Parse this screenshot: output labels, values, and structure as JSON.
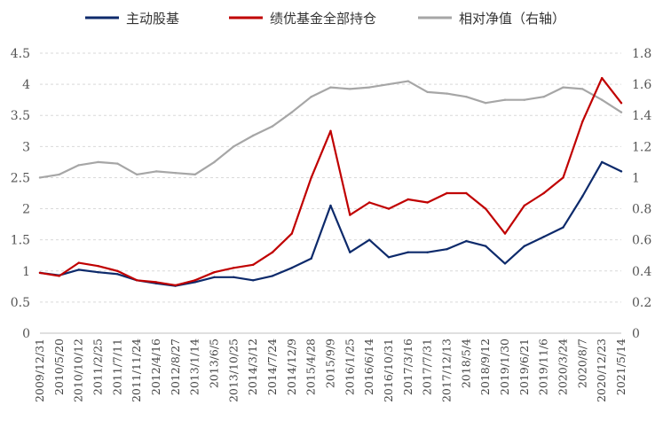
{
  "chart_data": {
    "type": "line",
    "title": "",
    "legend_position": "top",
    "x": [
      "2009/12/31",
      "2010/5/20",
      "2010/10/12",
      "2011/2/25",
      "2011/7/11",
      "2011/11/24",
      "2012/4/16",
      "2012/8/27",
      "2013/1/14",
      "2013/6/5",
      "2013/10/25",
      "2014/3/12",
      "2014/7/24",
      "2014/12/9",
      "2015/4/28",
      "2015/9/9",
      "2016/1/25",
      "2016/6/14",
      "2016/10/31",
      "2017/3/16",
      "2017/7/31",
      "2017/12/13",
      "2018/5/4",
      "2018/9/12",
      "2019/1/30",
      "2019/6/21",
      "2019/11/6",
      "2020/3/24",
      "2020/8/7",
      "2020/12/23",
      "2021/5/14"
    ],
    "y_left": {
      "ylim": [
        0,
        4.5
      ],
      "ticks": [
        "0",
        "0.5",
        "1",
        "1.5",
        "2",
        "2.5",
        "3",
        "3.5",
        "4",
        "4.5"
      ]
    },
    "y_right": {
      "ylim": [
        0,
        1.8
      ],
      "ticks": [
        "0",
        "0.2",
        "0.4",
        "0.6",
        "0.8",
        "1",
        "1.2",
        "1.4",
        "1.6",
        "1.8"
      ]
    },
    "series": [
      {
        "name": "主动股基",
        "axis": "left",
        "color": "#0d2a6b",
        "values": [
          0.97,
          0.93,
          1.02,
          0.98,
          0.95,
          0.85,
          0.8,
          0.76,
          0.82,
          0.9,
          0.9,
          0.85,
          0.92,
          1.05,
          1.2,
          2.05,
          1.3,
          1.5,
          1.22,
          1.3,
          1.3,
          1.35,
          1.48,
          1.4,
          1.12,
          1.4,
          1.55,
          1.7,
          2.2,
          2.75,
          2.6
        ]
      },
      {
        "name": "绩优基金全部持仓",
        "axis": "left",
        "color": "#c00000",
        "values": [
          0.97,
          0.92,
          1.13,
          1.08,
          1.0,
          0.85,
          0.82,
          0.77,
          0.85,
          0.98,
          1.05,
          1.1,
          1.3,
          1.6,
          2.5,
          3.25,
          1.9,
          2.1,
          2.0,
          2.15,
          2.1,
          2.25,
          2.25,
          2.0,
          1.6,
          2.05,
          2.25,
          2.5,
          3.4,
          4.1,
          3.7
        ]
      },
      {
        "name": "相对净值（右轴）",
        "axis": "right",
        "color": "#a6a6a6",
        "values": [
          1.0,
          1.02,
          1.08,
          1.1,
          1.09,
          1.02,
          1.04,
          1.03,
          1.02,
          1.1,
          1.2,
          1.27,
          1.33,
          1.42,
          1.52,
          1.58,
          1.57,
          1.58,
          1.6,
          1.62,
          1.55,
          1.54,
          1.52,
          1.48,
          1.5,
          1.5,
          1.52,
          1.58,
          1.57,
          1.5,
          1.42
        ]
      }
    ]
  }
}
